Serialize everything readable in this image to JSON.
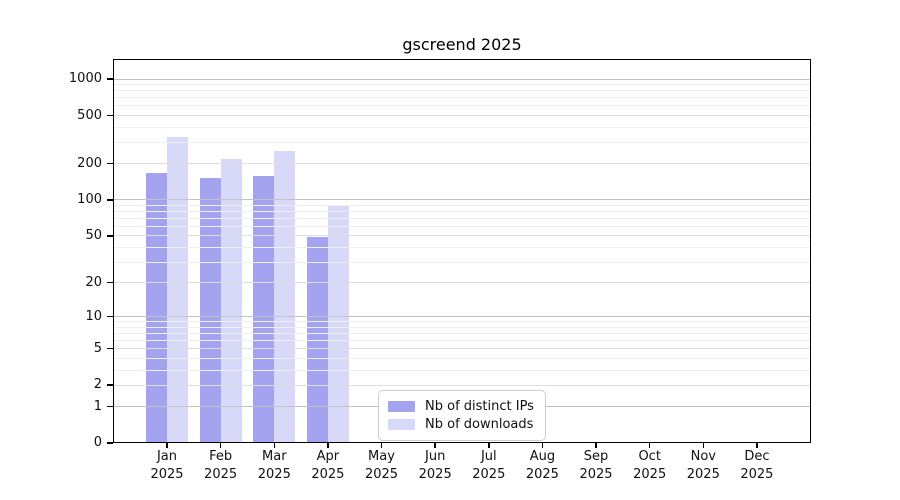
{
  "title": "gscreend 2025",
  "chart_data": {
    "type": "bar",
    "title": "gscreend 2025",
    "categories": [
      "Jan 2025",
      "Feb 2025",
      "Mar 2025",
      "Apr 2025",
      "May 2025",
      "Jun 2025",
      "Jul 2025",
      "Aug 2025",
      "Sep 2025",
      "Oct 2025",
      "Nov 2025",
      "Dec 2025"
    ],
    "series": [
      {
        "name": "Nb of distinct IPs",
        "color": "#a3a3f0",
        "values": [
          168,
          151,
          157,
          49,
          null,
          null,
          null,
          null,
          null,
          null,
          null,
          null
        ]
      },
      {
        "name": "Nb of downloads",
        "color": "#d8d8f8",
        "values": [
          333,
          218,
          255,
          90,
          null,
          null,
          null,
          null,
          null,
          null,
          null,
          null
        ]
      }
    ],
    "y_scale": "log10(1+x)",
    "y_ticks": [
      0,
      1,
      2,
      5,
      10,
      20,
      50,
      100,
      200,
      500,
      1000
    ],
    "y_grid_major": [
      1,
      10,
      100,
      1000
    ],
    "y_grid_mid": [
      2,
      5,
      20,
      50,
      200,
      500
    ],
    "y_grid_minor": [
      3,
      4,
      6,
      7,
      8,
      9,
      30,
      40,
      60,
      70,
      80,
      90,
      300,
      400,
      600,
      700,
      800,
      900
    ],
    "ylim": [
      0,
      1500
    ],
    "grid": true,
    "legend_position": "inside lower center",
    "bar_grouping": "paired bars per month: distinct IPs (dark) left, downloads (light) right"
  }
}
